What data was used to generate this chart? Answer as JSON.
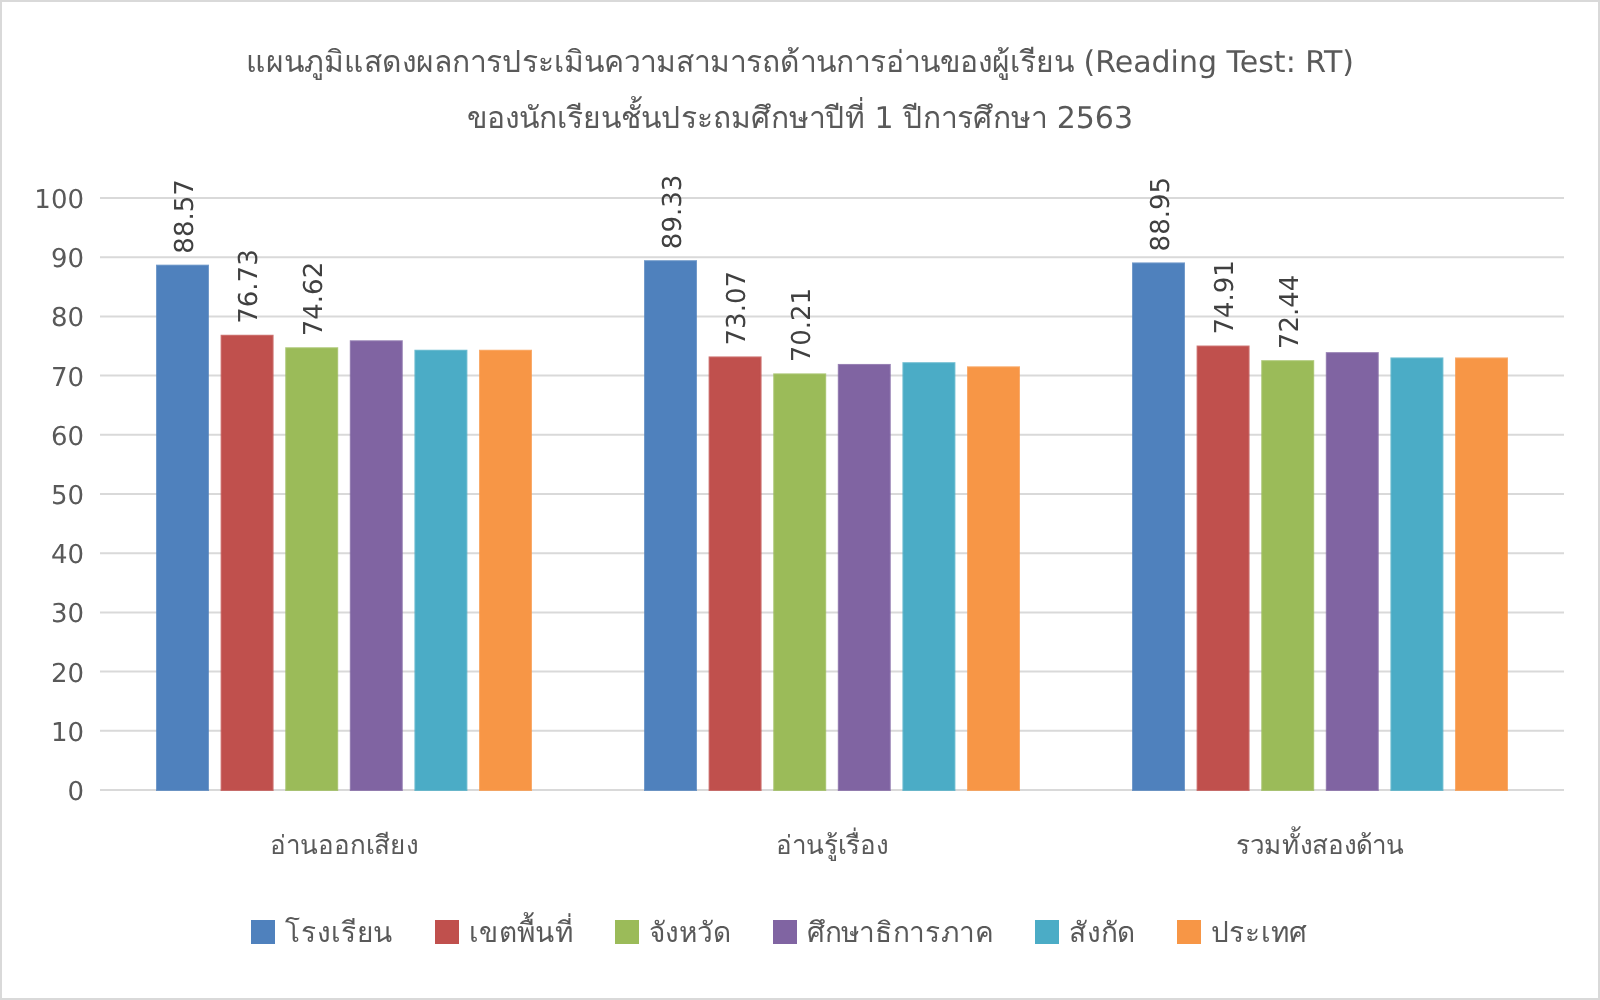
{
  "chart_data": {
    "type": "bar",
    "title": "แผนภูมิแสดงผลการประเมินความสามารถด้านการอ่านของผู้เรียน  (Reading Test: RT)",
    "subtitle": "ของนักเรียนชั้นประถมศึกษาปีที่  1 ปีการศึกษา 2563",
    "categories": [
      "อ่านออกเสียง",
      "อ่านรู้เรื่อง",
      "รวมทั้งสองด้าน"
    ],
    "series": [
      {
        "name": "โรงเรียน",
        "color": "#4f81bd",
        "values": [
          88.57,
          89.33,
          88.95
        ],
        "value_labels": [
          "88.57",
          "89.33",
          "88.95"
        ]
      },
      {
        "name": "เขตพื้นที่",
        "color": "#c0504d",
        "values": [
          76.73,
          73.07,
          74.91
        ],
        "value_labels": [
          "76.73",
          "73.07",
          "74.91"
        ]
      },
      {
        "name": "จังหวัด",
        "color": "#9bbb59",
        "values": [
          74.62,
          70.21,
          72.44
        ],
        "value_labels": [
          "74.62",
          "70.21",
          "72.44"
        ]
      },
      {
        "name": "ศึกษาธิการภาค",
        "color": "#8064a2",
        "values": [
          75.8,
          71.8,
          73.8
        ]
      },
      {
        "name": "สังกัด",
        "color": "#4bacc6",
        "values": [
          74.2,
          72.1,
          72.9
        ]
      },
      {
        "name": "ประเทศ",
        "color": "#f79646",
        "values": [
          74.2,
          71.4,
          72.9
        ]
      }
    ],
    "ylim": [
      0,
      100
    ],
    "yticks": [
      0,
      10,
      20,
      30,
      40,
      50,
      60,
      70,
      80,
      90,
      100
    ],
    "grid": "y",
    "legend": "bottom"
  }
}
